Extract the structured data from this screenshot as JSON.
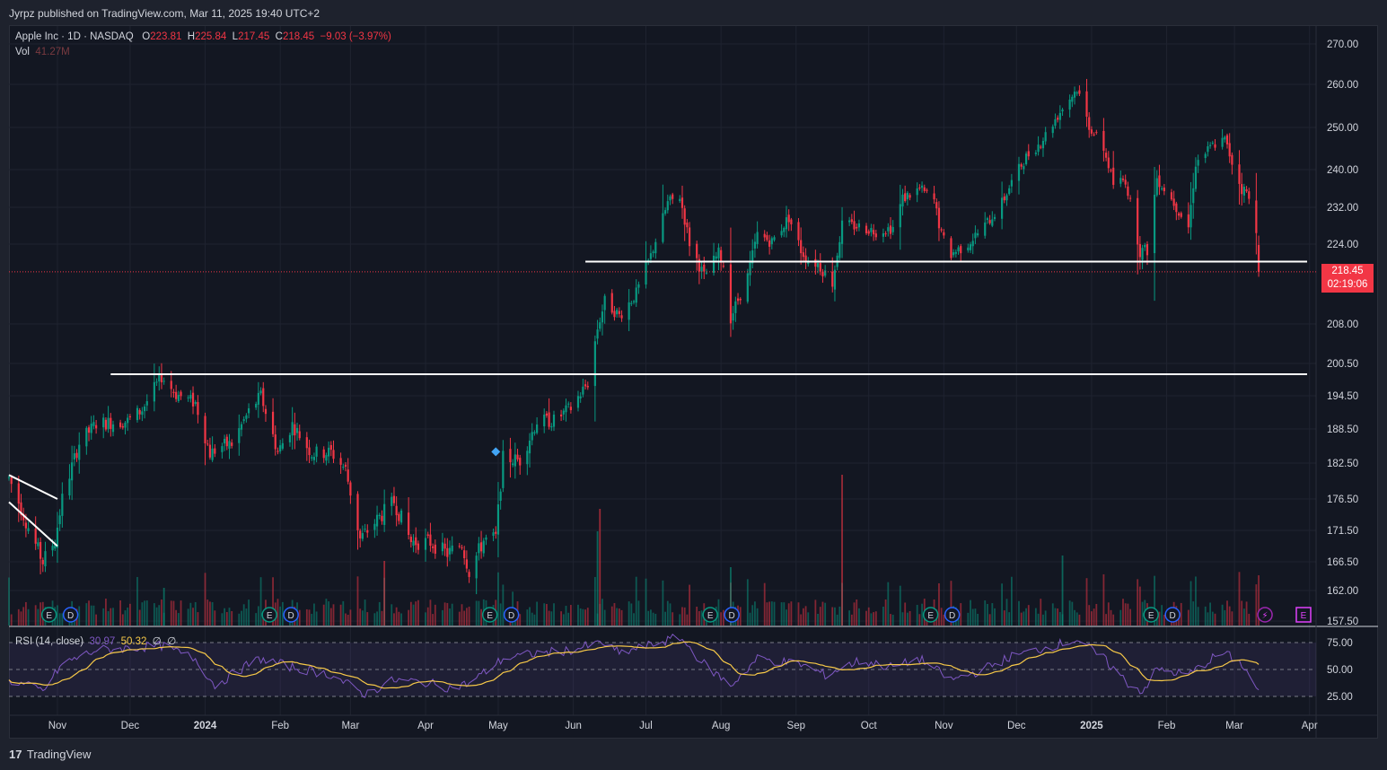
{
  "header": {
    "publisher": "Jyrpz published on TradingView.com, Mar 11, 2025 19:40 UTC+2"
  },
  "legend": {
    "symbol": "Apple Inc · 1D · NASDAQ",
    "o_label": "O",
    "o_val": "223.81",
    "h_label": "H",
    "h_val": "225.84",
    "l_label": "L",
    "l_val": "217.45",
    "c_label": "C",
    "c_val": "218.45",
    "change": "−9.03 (−3.97%)",
    "vol_label": "Vol",
    "vol_val": "41.27M"
  },
  "rsi_legend": {
    "label": "RSI (14, close)",
    "rsi": "30.97",
    "ma": "50.32",
    "e1": "∅",
    "e2": "∅"
  },
  "price_tag": {
    "price": "218.45",
    "countdown": "02:19:06"
  },
  "brand": {
    "name": "TradingView"
  },
  "colors": {
    "up": "#089981",
    "down": "#f23645",
    "bg": "#131722",
    "rsi": "#7e57c2",
    "rsi_ma": "#f7c948"
  },
  "event_icons": {
    "earnings": "E",
    "dividends": "D"
  },
  "chart_data": {
    "type": "candlestick",
    "symbol": "AAPL",
    "y_ticks": [
      "270.00",
      "260.00",
      "250.00",
      "240.00",
      "232.00",
      "224.00",
      "218.45",
      "208.00",
      "200.50",
      "194.50",
      "188.50",
      "182.50",
      "176.50",
      "171.50",
      "166.50",
      "162.00",
      "157.50"
    ],
    "y_tick_values": [
      270,
      260,
      250,
      240,
      232,
      224,
      208,
      200.5,
      194.5,
      188.5,
      182.5,
      176.5,
      171.5,
      166.5,
      162,
      157.5
    ],
    "ylim": [
      157.5,
      272
    ],
    "x_ticks": [
      "Nov",
      "Dec",
      "2024",
      "Feb",
      "Mar",
      "Apr",
      "May",
      "Jun",
      "Jul",
      "Aug",
      "Sep",
      "Oct",
      "Nov",
      "Dec",
      "2025",
      "Feb",
      "Mar",
      "Apr"
    ],
    "x_tick_dates": [
      "2023-11-01",
      "2023-12-01",
      "2024-01-01",
      "2024-02-01",
      "2024-03-01",
      "2024-04-01",
      "2024-05-01",
      "2024-06-01",
      "2024-07-01",
      "2024-08-01",
      "2024-09-01",
      "2024-10-01",
      "2024-11-01",
      "2024-12-01",
      "2025-01-01",
      "2025-02-01",
      "2025-03-01",
      "2025-04-01"
    ],
    "horizontal_lines": [
      {
        "level": 220.5,
        "from": "2024-06-06",
        "to": "2025-03-31"
      },
      {
        "level": 198.5,
        "from": "2023-11-23",
        "to": "2025-03-31"
      }
    ],
    "trend_lines": [
      {
        "from": {
          "date": "2023-10-12",
          "value": 180.5
        },
        "to": {
          "date": "2023-11-01",
          "value": 176.5
        }
      },
      {
        "from": {
          "date": "2023-10-12",
          "value": 176
        },
        "to": {
          "date": "2023-11-01",
          "value": 169
        }
      }
    ],
    "marker": {
      "date": "2024-04-30",
      "value": 184.5
    },
    "anchors": [
      [
        "2023-10-12",
        180
      ],
      [
        "2023-10-20",
        172
      ],
      [
        "2023-10-26",
        166.5
      ],
      [
        "2023-10-31",
        170
      ],
      [
        "2023-11-03",
        176.5
      ],
      [
        "2023-11-10",
        186
      ],
      [
        "2023-11-17",
        189.5
      ],
      [
        "2023-11-24",
        189.7
      ],
      [
        "2023-11-30",
        189.9
      ],
      [
        "2023-12-06",
        192
      ],
      [
        "2023-12-14",
        198.1
      ],
      [
        "2023-12-20",
        194.8
      ],
      [
        "2023-12-28",
        193.2
      ],
      [
        "2024-01-03",
        184.2
      ],
      [
        "2024-01-08",
        185.5
      ],
      [
        "2024-01-12",
        185.9
      ],
      [
        "2024-01-19",
        191.6
      ],
      [
        "2024-01-24",
        194.5
      ],
      [
        "2024-01-31",
        184.4
      ],
      [
        "2024-02-06",
        189.3
      ],
      [
        "2024-02-14",
        184.2
      ],
      [
        "2024-02-22",
        184.4
      ],
      [
        "2024-02-28",
        181.4
      ],
      [
        "2024-03-05",
        170.1
      ],
      [
        "2024-03-12",
        173.2
      ],
      [
        "2024-03-19",
        176.1
      ],
      [
        "2024-03-26",
        169.7
      ],
      [
        "2024-04-03",
        169.6
      ],
      [
        "2024-04-10",
        167.8
      ],
      [
        "2024-04-16",
        169.4
      ],
      [
        "2024-04-19",
        165
      ],
      [
        "2024-04-25",
        169.9
      ],
      [
        "2024-04-30",
        170.3
      ],
      [
        "2024-05-03",
        183.4
      ],
      [
        "2024-05-10",
        183
      ],
      [
        "2024-05-17",
        189.9
      ],
      [
        "2024-05-24",
        190
      ],
      [
        "2024-05-31",
        192.3
      ],
      [
        "2024-06-07",
        196.9
      ],
      [
        "2024-06-11",
        207.2
      ],
      [
        "2024-06-14",
        212.5
      ],
      [
        "2024-06-20",
        209.7
      ],
      [
        "2024-06-27",
        214.1
      ],
      [
        "2024-07-03",
        221.6
      ],
      [
        "2024-07-10",
        232.9
      ],
      [
        "2024-07-15",
        234.4
      ],
      [
        "2024-07-19",
        224.3
      ],
      [
        "2024-07-25",
        217.5
      ],
      [
        "2024-07-31",
        222.1
      ],
      [
        "2024-08-02",
        219.9
      ],
      [
        "2024-08-05",
        209.3
      ],
      [
        "2024-08-12",
        217.5
      ],
      [
        "2024-08-16",
        226
      ],
      [
        "2024-08-22",
        224.5
      ],
      [
        "2024-08-29",
        229.8
      ],
      [
        "2024-09-03",
        222.8
      ],
      [
        "2024-09-06",
        220.8
      ],
      [
        "2024-09-10",
        220.1
      ],
      [
        "2024-09-16",
        216.3
      ],
      [
        "2024-09-20",
        228.2
      ],
      [
        "2024-09-27",
        227.8
      ],
      [
        "2024-10-04",
        226.8
      ],
      [
        "2024-10-11",
        227.6
      ],
      [
        "2024-10-15",
        233.9
      ],
      [
        "2024-10-22",
        235.9
      ],
      [
        "2024-10-28",
        233.4
      ],
      [
        "2024-10-31",
        225.9
      ],
      [
        "2024-11-04",
        222
      ],
      [
        "2024-11-11",
        224.2
      ],
      [
        "2024-11-18",
        228
      ],
      [
        "2024-11-25",
        232.9
      ],
      [
        "2024-11-29",
        237.3
      ],
      [
        "2024-12-05",
        243
      ],
      [
        "2024-12-11",
        246.5
      ],
      [
        "2024-12-16",
        251
      ],
      [
        "2024-12-20",
        254.5
      ],
      [
        "2024-12-26",
        259
      ],
      [
        "2024-12-31",
        250.4
      ],
      [
        "2025-01-06",
        245
      ],
      [
        "2025-01-10",
        236.9
      ],
      [
        "2025-01-15",
        237.9
      ],
      [
        "2025-01-21",
        222.6
      ],
      [
        "2025-01-24",
        222.8
      ],
      [
        "2025-01-28",
        238.3
      ],
      [
        "2025-01-31",
        236
      ],
      [
        "2025-02-04",
        233
      ],
      [
        "2025-02-10",
        227.7
      ],
      [
        "2025-02-13",
        241.5
      ],
      [
        "2025-02-20",
        245.8
      ],
      [
        "2025-02-25",
        247
      ],
      [
        "2025-02-28",
        241.8
      ],
      [
        "2025-03-04",
        235.9
      ],
      [
        "2025-03-06",
        235.3
      ],
      [
        "2025-03-10",
        227.5
      ],
      [
        "2025-03-11",
        218.45
      ]
    ],
    "last": {
      "open": 223.81,
      "high": 225.84,
      "low": 217.45,
      "close": 218.45,
      "change": -9.03,
      "change_pct": -3.97,
      "volume": "41.27M"
    },
    "rsi": {
      "period": 14,
      "last": 30.97,
      "ma_last": 50.32,
      "levels": [
        75,
        50,
        25
      ],
      "anchors": [
        [
          "2023-10-12",
          40
        ],
        [
          "2023-10-26",
          30
        ],
        [
          "2023-11-03",
          55
        ],
        [
          "2023-11-17",
          68
        ],
        [
          "2023-12-01",
          70
        ],
        [
          "2023-12-14",
          72
        ],
        [
          "2023-12-28",
          60
        ],
        [
          "2024-01-05",
          35
        ],
        [
          "2024-01-19",
          55
        ],
        [
          "2024-01-24",
          60
        ],
        [
          "2024-02-06",
          52
        ],
        [
          "2024-02-22",
          45
        ],
        [
          "2024-03-07",
          27
        ],
        [
          "2024-03-19",
          40
        ],
        [
          "2024-04-01",
          38
        ],
        [
          "2024-04-11",
          33
        ],
        [
          "2024-04-19",
          37
        ],
        [
          "2024-05-03",
          60
        ],
        [
          "2024-05-17",
          65
        ],
        [
          "2024-05-31",
          68
        ],
        [
          "2024-06-13",
          75
        ],
        [
          "2024-06-20",
          65
        ],
        [
          "2024-07-15",
          80
        ],
        [
          "2024-07-25",
          55
        ],
        [
          "2024-08-05",
          35
        ],
        [
          "2024-08-16",
          60
        ],
        [
          "2024-09-03",
          55
        ],
        [
          "2024-09-13",
          45
        ],
        [
          "2024-09-27",
          58
        ],
        [
          "2024-10-11",
          52
        ],
        [
          "2024-10-22",
          60
        ],
        [
          "2024-11-04",
          40
        ],
        [
          "2024-11-15",
          48
        ],
        [
          "2024-11-29",
          62
        ],
        [
          "2024-12-16",
          72
        ],
        [
          "2024-12-26",
          78
        ],
        [
          "2025-01-06",
          60
        ],
        [
          "2025-01-17",
          35
        ],
        [
          "2025-01-22",
          30
        ],
        [
          "2025-01-28",
          50
        ],
        [
          "2025-02-10",
          45
        ],
        [
          "2025-02-21",
          62
        ],
        [
          "2025-02-25",
          65
        ],
        [
          "2025-03-04",
          55
        ],
        [
          "2025-03-11",
          30.97
        ]
      ]
    }
  }
}
